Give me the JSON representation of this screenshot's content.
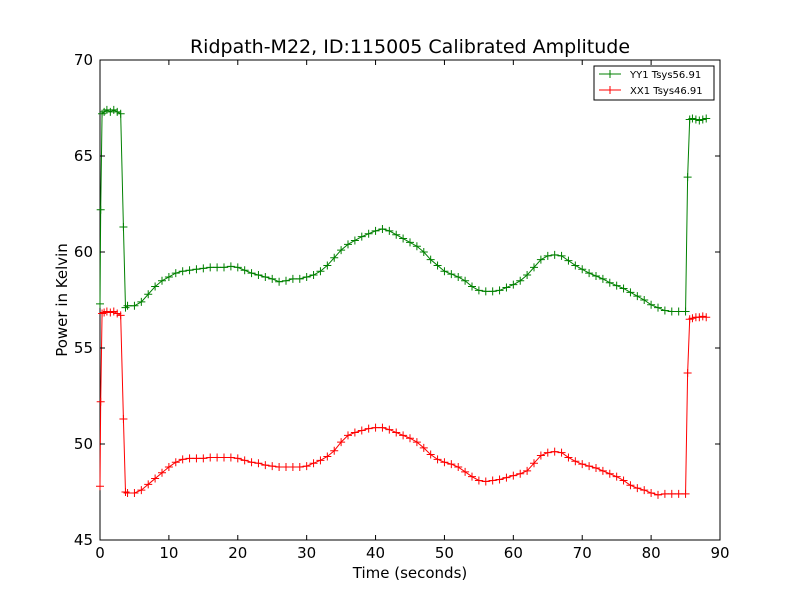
{
  "chart_data": {
    "type": "line",
    "title": "Ridpath-M22, ID:115005 Calibrated Amplitude",
    "xlabel": "Time (seconds)",
    "ylabel": "Power in Kelvin",
    "xlim": [
      0,
      90
    ],
    "ylim": [
      45,
      70
    ],
    "x_ticks": [
      0,
      10,
      20,
      30,
      40,
      50,
      60,
      70,
      80,
      90
    ],
    "y_ticks": [
      45,
      50,
      55,
      60,
      65,
      70
    ],
    "legend_position": "top-right",
    "series": [
      {
        "name": "YY1 Tsys56.91",
        "color": "#008000",
        "marker": "plus",
        "points": [
          [
            0.0,
            57.3
          ],
          [
            0.1,
            62.2
          ],
          [
            0.3,
            67.2
          ],
          [
            0.6,
            67.3
          ],
          [
            1.0,
            67.4
          ],
          [
            1.5,
            67.3
          ],
          [
            2.0,
            67.4
          ],
          [
            2.5,
            67.3
          ],
          [
            3.0,
            67.2
          ],
          [
            3.4,
            61.3
          ],
          [
            3.7,
            57.1
          ],
          [
            4.0,
            57.2
          ],
          [
            5.0,
            57.2
          ],
          [
            6.0,
            57.4
          ],
          [
            7.0,
            57.8
          ],
          [
            8.0,
            58.2
          ],
          [
            9.0,
            58.5
          ],
          [
            10.0,
            58.7
          ],
          [
            11.0,
            58.9
          ],
          [
            12.0,
            59.0
          ],
          [
            13.0,
            59.05
          ],
          [
            14.0,
            59.1
          ],
          [
            15.0,
            59.15
          ],
          [
            16.0,
            59.2
          ],
          [
            17.0,
            59.2
          ],
          [
            18.0,
            59.2
          ],
          [
            19.0,
            59.25
          ],
          [
            20.0,
            59.2
          ],
          [
            21.0,
            59.05
          ],
          [
            22.0,
            58.9
          ],
          [
            23.0,
            58.8
          ],
          [
            24.0,
            58.7
          ],
          [
            25.0,
            58.6
          ],
          [
            26.0,
            58.45
          ],
          [
            27.0,
            58.5
          ],
          [
            28.0,
            58.6
          ],
          [
            29.0,
            58.6
          ],
          [
            30.0,
            58.7
          ],
          [
            31.0,
            58.8
          ],
          [
            32.0,
            59.0
          ],
          [
            33.0,
            59.3
          ],
          [
            34.0,
            59.7
          ],
          [
            35.0,
            60.1
          ],
          [
            36.0,
            60.4
          ],
          [
            37.0,
            60.6
          ],
          [
            38.0,
            60.8
          ],
          [
            39.0,
            60.95
          ],
          [
            40.0,
            61.1
          ],
          [
            41.0,
            61.2
          ],
          [
            42.0,
            61.1
          ],
          [
            43.0,
            60.9
          ],
          [
            44.0,
            60.7
          ],
          [
            45.0,
            60.5
          ],
          [
            46.0,
            60.3
          ],
          [
            47.0,
            60.0
          ],
          [
            48.0,
            59.6
          ],
          [
            49.0,
            59.3
          ],
          [
            50.0,
            59.0
          ],
          [
            51.0,
            58.85
          ],
          [
            52.0,
            58.7
          ],
          [
            53.0,
            58.5
          ],
          [
            54.0,
            58.2
          ],
          [
            55.0,
            58.0
          ],
          [
            56.0,
            57.95
          ],
          [
            57.0,
            57.95
          ],
          [
            58.0,
            58.0
          ],
          [
            59.0,
            58.15
          ],
          [
            60.0,
            58.3
          ],
          [
            61.0,
            58.5
          ],
          [
            62.0,
            58.8
          ],
          [
            63.0,
            59.2
          ],
          [
            64.0,
            59.6
          ],
          [
            65.0,
            59.8
          ],
          [
            66.0,
            59.85
          ],
          [
            67.0,
            59.8
          ],
          [
            68.0,
            59.55
          ],
          [
            69.0,
            59.3
          ],
          [
            70.0,
            59.1
          ],
          [
            71.0,
            58.9
          ],
          [
            72.0,
            58.75
          ],
          [
            73.0,
            58.6
          ],
          [
            74.0,
            58.4
          ],
          [
            75.0,
            58.25
          ],
          [
            76.0,
            58.1
          ],
          [
            77.0,
            57.9
          ],
          [
            78.0,
            57.7
          ],
          [
            79.0,
            57.5
          ],
          [
            80.0,
            57.25
          ],
          [
            81.0,
            57.1
          ],
          [
            82.0,
            56.95
          ],
          [
            83.0,
            56.9
          ],
          [
            84.0,
            56.9
          ],
          [
            85.0,
            56.9
          ],
          [
            85.3,
            63.9
          ],
          [
            85.6,
            66.9
          ],
          [
            86.0,
            66.95
          ],
          [
            86.5,
            66.9
          ],
          [
            87.0,
            66.85
          ],
          [
            87.5,
            66.9
          ],
          [
            88.0,
            66.95
          ]
        ]
      },
      {
        "name": "XX1 Tsys46.91",
        "color": "#ff0000",
        "marker": "plus",
        "points": [
          [
            0.0,
            47.8
          ],
          [
            0.1,
            52.2
          ],
          [
            0.3,
            56.8
          ],
          [
            0.6,
            56.85
          ],
          [
            1.0,
            56.9
          ],
          [
            1.5,
            56.85
          ],
          [
            2.0,
            56.9
          ],
          [
            2.5,
            56.8
          ],
          [
            3.0,
            56.7
          ],
          [
            3.4,
            51.3
          ],
          [
            3.7,
            47.5
          ],
          [
            4.0,
            47.45
          ],
          [
            5.0,
            47.45
          ],
          [
            6.0,
            47.6
          ],
          [
            7.0,
            47.9
          ],
          [
            8.0,
            48.2
          ],
          [
            9.0,
            48.5
          ],
          [
            10.0,
            48.8
          ],
          [
            11.0,
            49.05
          ],
          [
            12.0,
            49.2
          ],
          [
            13.0,
            49.25
          ],
          [
            14.0,
            49.25
          ],
          [
            15.0,
            49.25
          ],
          [
            16.0,
            49.3
          ],
          [
            17.0,
            49.3
          ],
          [
            18.0,
            49.3
          ],
          [
            19.0,
            49.3
          ],
          [
            20.0,
            49.25
          ],
          [
            21.0,
            49.15
          ],
          [
            22.0,
            49.05
          ],
          [
            23.0,
            49.0
          ],
          [
            24.0,
            48.9
          ],
          [
            25.0,
            48.85
          ],
          [
            26.0,
            48.8
          ],
          [
            27.0,
            48.8
          ],
          [
            28.0,
            48.8
          ],
          [
            29.0,
            48.8
          ],
          [
            30.0,
            48.85
          ],
          [
            31.0,
            49.0
          ],
          [
            32.0,
            49.15
          ],
          [
            33.0,
            49.35
          ],
          [
            34.0,
            49.65
          ],
          [
            35.0,
            50.1
          ],
          [
            36.0,
            50.45
          ],
          [
            37.0,
            50.6
          ],
          [
            38.0,
            50.7
          ],
          [
            39.0,
            50.8
          ],
          [
            40.0,
            50.85
          ],
          [
            41.0,
            50.85
          ],
          [
            42.0,
            50.75
          ],
          [
            43.0,
            50.6
          ],
          [
            44.0,
            50.45
          ],
          [
            45.0,
            50.3
          ],
          [
            46.0,
            50.1
          ],
          [
            47.0,
            49.8
          ],
          [
            48.0,
            49.45
          ],
          [
            49.0,
            49.2
          ],
          [
            50.0,
            49.05
          ],
          [
            51.0,
            48.95
          ],
          [
            52.0,
            48.8
          ],
          [
            53.0,
            48.55
          ],
          [
            54.0,
            48.3
          ],
          [
            55.0,
            48.1
          ],
          [
            56.0,
            48.05
          ],
          [
            57.0,
            48.1
          ],
          [
            58.0,
            48.15
          ],
          [
            59.0,
            48.25
          ],
          [
            60.0,
            48.35
          ],
          [
            61.0,
            48.45
          ],
          [
            62.0,
            48.6
          ],
          [
            63.0,
            49.0
          ],
          [
            64.0,
            49.4
          ],
          [
            65.0,
            49.55
          ],
          [
            66.0,
            49.6
          ],
          [
            67.0,
            49.55
          ],
          [
            68.0,
            49.3
          ],
          [
            69.0,
            49.1
          ],
          [
            70.0,
            48.95
          ],
          [
            71.0,
            48.85
          ],
          [
            72.0,
            48.75
          ],
          [
            73.0,
            48.6
          ],
          [
            74.0,
            48.45
          ],
          [
            75.0,
            48.3
          ],
          [
            76.0,
            48.1
          ],
          [
            77.0,
            47.85
          ],
          [
            78.0,
            47.7
          ],
          [
            79.0,
            47.6
          ],
          [
            80.0,
            47.45
          ],
          [
            81.0,
            47.35
          ],
          [
            82.0,
            47.4
          ],
          [
            83.0,
            47.4
          ],
          [
            84.0,
            47.4
          ],
          [
            85.0,
            47.4
          ],
          [
            85.3,
            53.7
          ],
          [
            85.6,
            56.5
          ],
          [
            86.0,
            56.55
          ],
          [
            86.5,
            56.6
          ],
          [
            87.0,
            56.6
          ],
          [
            87.5,
            56.65
          ],
          [
            88.0,
            56.6
          ]
        ]
      }
    ]
  }
}
